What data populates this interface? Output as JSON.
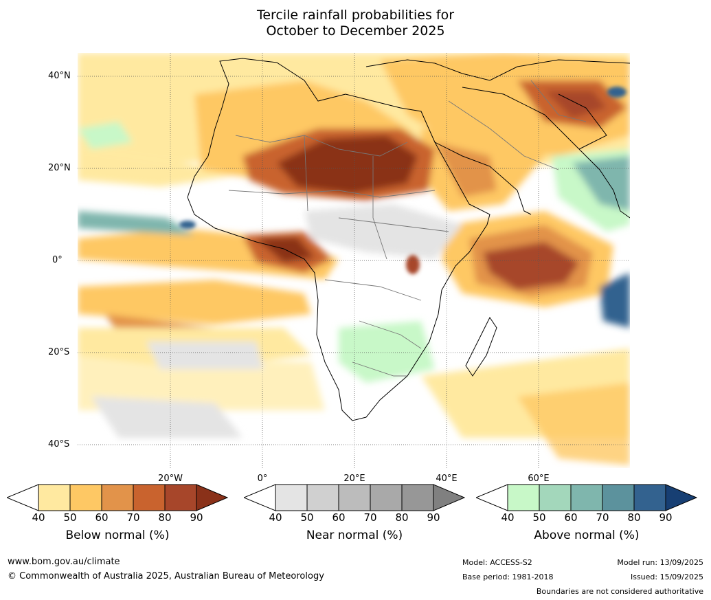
{
  "title": {
    "line1": "Tercile rainfall probabilities for",
    "line2": "October to December 2025"
  },
  "map": {
    "lat_labels": [
      "40°N",
      "20°N",
      "0°",
      "20°S",
      "40°S"
    ],
    "lon_labels": [
      "20°W",
      "0°",
      "20°E",
      "40°E",
      "60°E"
    ]
  },
  "colorbars": [
    {
      "name": "Below normal (%)",
      "ticks": [
        "40",
        "50",
        "60",
        "70",
        "80",
        "90"
      ],
      "colors": [
        "#ffffff",
        "#ffe9a0",
        "#fec864",
        "#e2934a",
        "#c9632e",
        "#a7462a",
        "#8a3119"
      ]
    },
    {
      "name": "Near normal (%)",
      "ticks": [
        "40",
        "50",
        "60",
        "70",
        "80",
        "90"
      ],
      "colors": [
        "#ffffff",
        "#e4e4e4",
        "#d0d0d0",
        "#bcbcbc",
        "#a9a9a9",
        "#979797",
        "#808080"
      ]
    },
    {
      "name": "Above normal (%)",
      "ticks": [
        "40",
        "50",
        "60",
        "70",
        "80",
        "90"
      ],
      "colors": [
        "#ffffff",
        "#c8f8c8",
        "#a3d7bb",
        "#7fb6ad",
        "#5c929d",
        "#33628f",
        "#173f73"
      ]
    }
  ],
  "footer": {
    "url": "www.bom.gov.au/climate",
    "copyright": "© Commonwealth of Australia 2025, Australian Bureau of Meteorology",
    "model": "Model: ACCESS-S2",
    "base_period": "Base period: 1981-2018",
    "model_run": "Model run: 13/09/2025",
    "issued": "Issued: 15/09/2025",
    "disclaimer": "Boundaries are not considered authoritative"
  }
}
